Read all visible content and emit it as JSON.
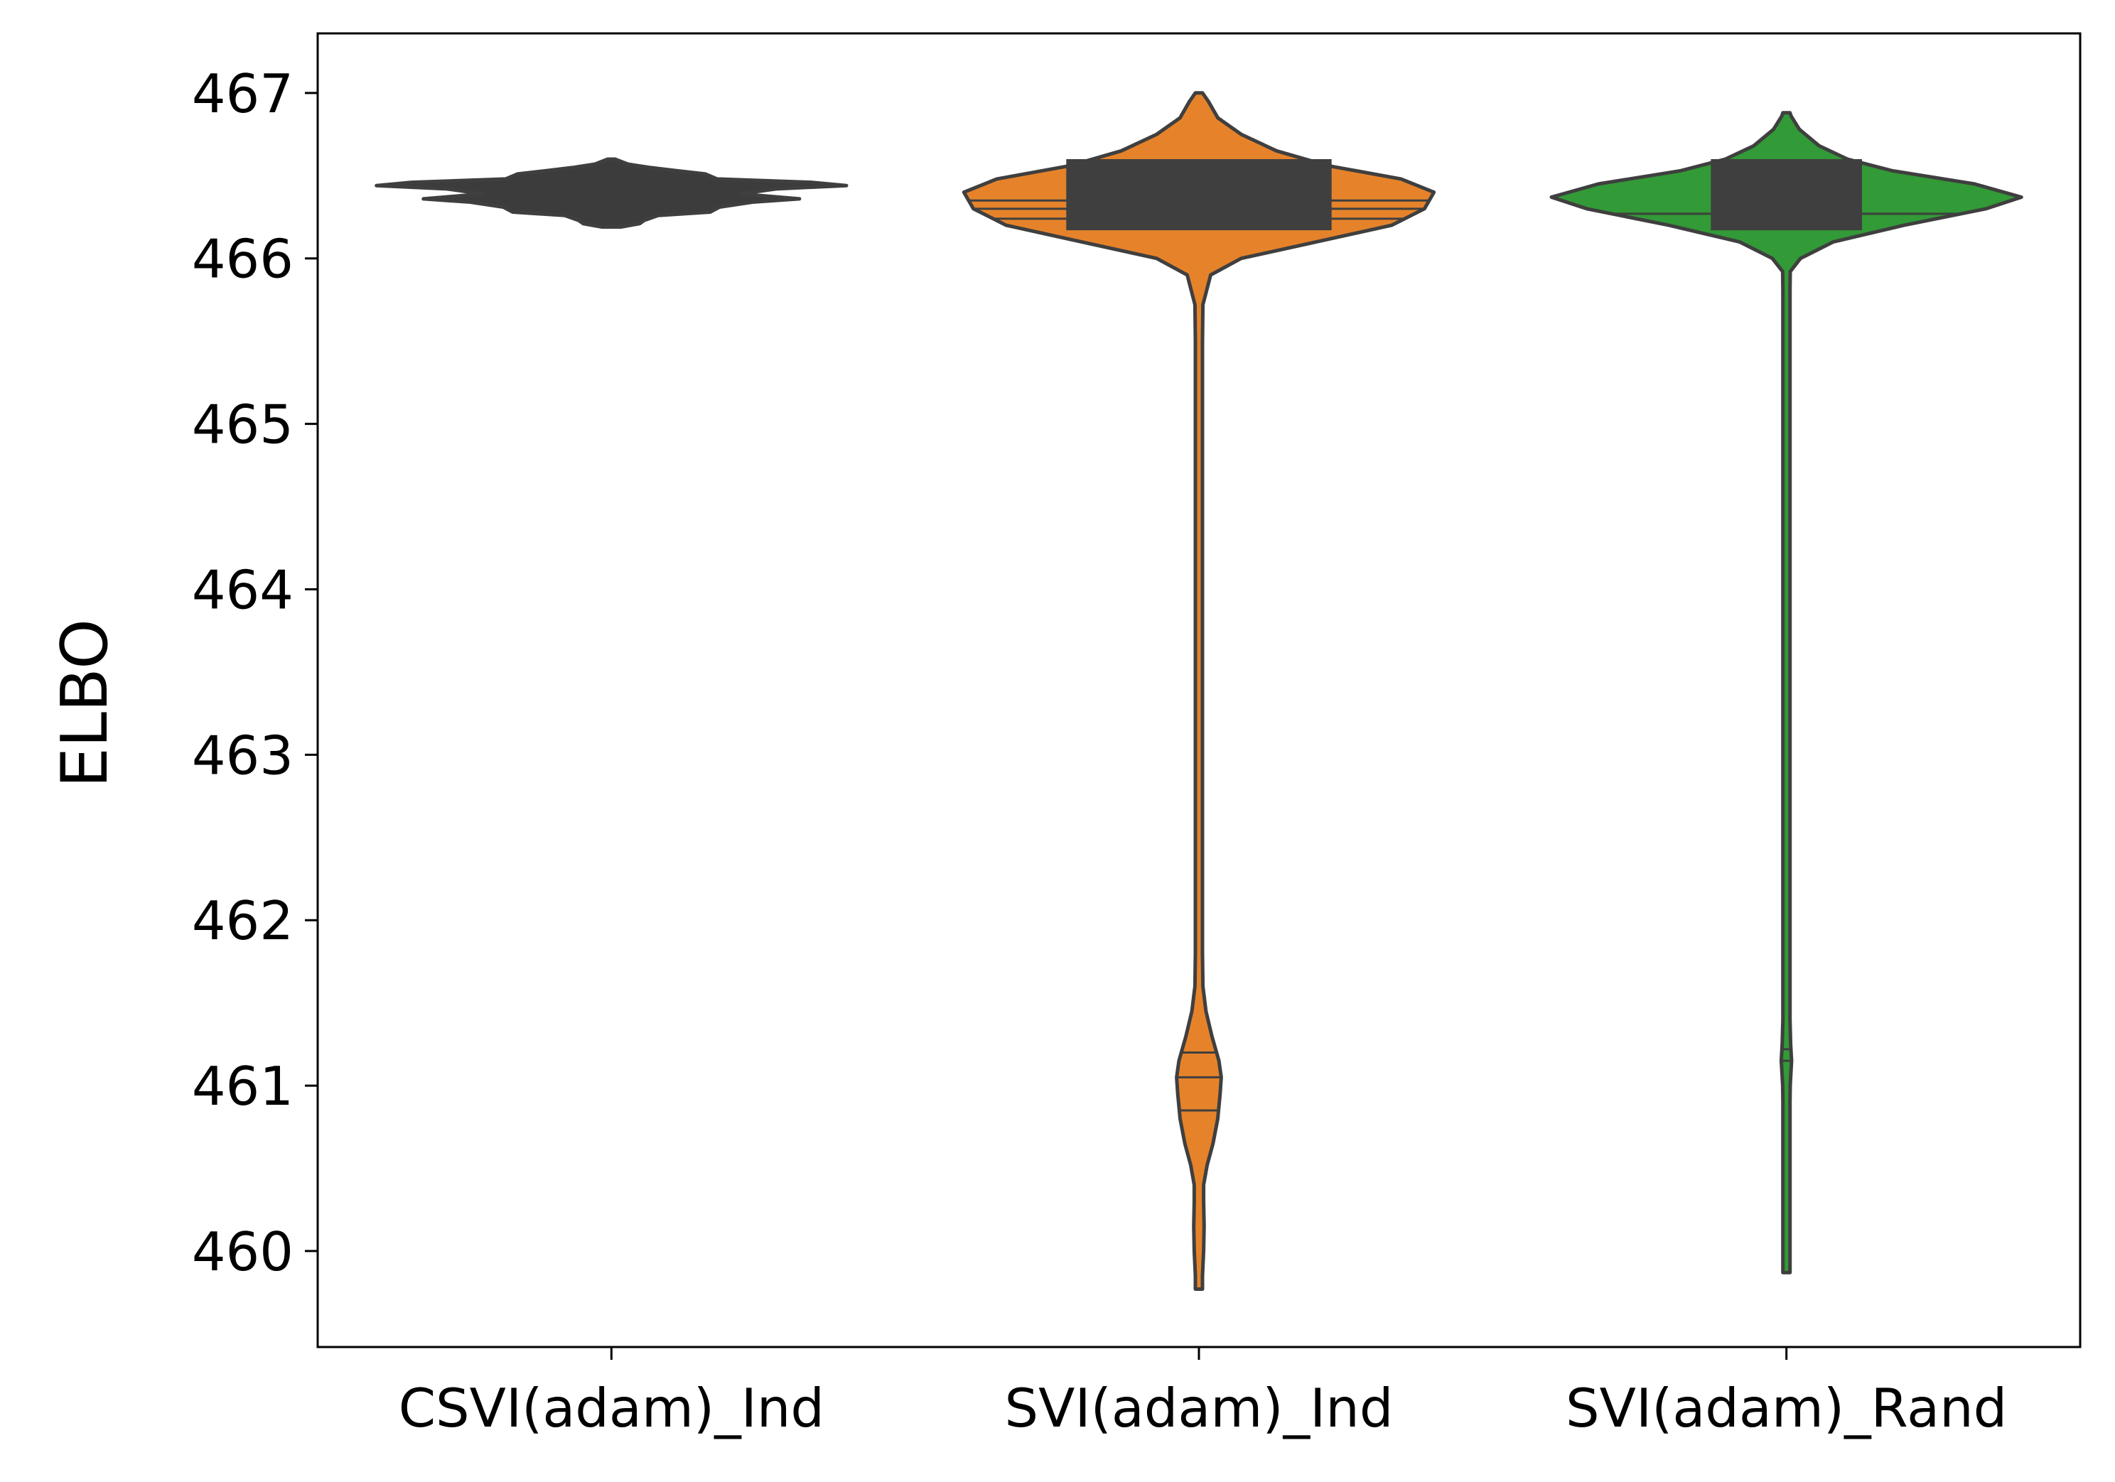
{
  "chart_data": {
    "type": "violin",
    "title": "",
    "xlabel": "",
    "ylabel": "ELBO",
    "ylim": [
      459.42,
      467.36
    ],
    "yticks": [
      460,
      461,
      462,
      463,
      464,
      465,
      466,
      467
    ],
    "ytick_labels": [
      "460",
      "461",
      "462",
      "463",
      "464",
      "465",
      "466",
      "467"
    ],
    "grid": false,
    "legend": "none",
    "categories": [
      "CSVI(adam)_Ind",
      "SVI(adam)_Ind",
      "SVI(adam)_Rand"
    ],
    "colors": {
      "CSVI(adam)_Ind": "#3c3c3c",
      "SVI(adam)_Ind": "#e6832a",
      "SVI(adam)_Rand": "#329a36",
      "outline": "#3f3f3f",
      "axis": "#000000"
    },
    "series": [
      {
        "category": "CSVI(adam)_Ind",
        "min": 466.19,
        "max": 466.6,
        "density": [
          [
            466.19,
            0.04
          ],
          [
            466.21,
            0.12
          ],
          [
            466.23,
            0.14
          ],
          [
            466.26,
            0.2
          ],
          [
            466.28,
            0.42
          ],
          [
            466.31,
            0.46
          ],
          [
            466.34,
            0.6
          ],
          [
            466.36,
            0.8
          ],
          [
            466.39,
            0.55
          ],
          [
            466.42,
            0.7
          ],
          [
            466.44,
            1.0
          ],
          [
            466.46,
            0.85
          ],
          [
            466.48,
            0.45
          ],
          [
            466.51,
            0.4
          ],
          [
            466.53,
            0.28
          ],
          [
            466.55,
            0.16
          ],
          [
            466.57,
            0.07
          ],
          [
            466.6,
            0.01
          ]
        ],
        "quartiles": []
      },
      {
        "category": "SVI(adam)_Ind",
        "min": 459.77,
        "max": 467.0,
        "density": [
          [
            459.77,
            0.0
          ],
          [
            459.85,
            0.015
          ],
          [
            460.0,
            0.02
          ],
          [
            460.15,
            0.022
          ],
          [
            460.3,
            0.02
          ],
          [
            460.4,
            0.02
          ],
          [
            460.52,
            0.035
          ],
          [
            460.65,
            0.06
          ],
          [
            460.8,
            0.08
          ],
          [
            460.95,
            0.09
          ],
          [
            461.05,
            0.095
          ],
          [
            461.15,
            0.085
          ],
          [
            461.3,
            0.055
          ],
          [
            461.45,
            0.03
          ],
          [
            461.6,
            0.017
          ],
          [
            461.8,
            0.011
          ],
          [
            462.3,
            0.01
          ],
          [
            463.5,
            0.01
          ],
          [
            464.5,
            0.01
          ],
          [
            465.5,
            0.011
          ],
          [
            465.72,
            0.017
          ],
          [
            465.9,
            0.05
          ],
          [
            466.0,
            0.18
          ],
          [
            466.1,
            0.5
          ],
          [
            466.2,
            0.82
          ],
          [
            466.3,
            0.96
          ],
          [
            466.4,
            1.0
          ],
          [
            466.48,
            0.86
          ],
          [
            466.56,
            0.55
          ],
          [
            466.65,
            0.33
          ],
          [
            466.75,
            0.18
          ],
          [
            466.85,
            0.08
          ],
          [
            466.95,
            0.04
          ],
          [
            467.0,
            0.0
          ]
        ],
        "quartiles": [
          460.85,
          461.05,
          461.2,
          466.24,
          466.3,
          466.35
        ]
      },
      {
        "category": "SVI(adam)_Rand",
        "min": 459.87,
        "max": 466.88,
        "density": [
          [
            459.87,
            0.0
          ],
          [
            459.95,
            0.008
          ],
          [
            460.05,
            0.012
          ],
          [
            460.15,
            0.01
          ],
          [
            460.3,
            0.006
          ],
          [
            460.5,
            0.005
          ],
          [
            460.75,
            0.006
          ],
          [
            460.9,
            0.01
          ],
          [
            461.0,
            0.016
          ],
          [
            461.15,
            0.022
          ],
          [
            461.25,
            0.018
          ],
          [
            461.4,
            0.012
          ],
          [
            461.6,
            0.007
          ],
          [
            462.0,
            0.006
          ],
          [
            463.0,
            0.006
          ],
          [
            464.0,
            0.006
          ],
          [
            465.0,
            0.006
          ],
          [
            465.8,
            0.007
          ],
          [
            465.92,
            0.016
          ],
          [
            466.0,
            0.06
          ],
          [
            466.1,
            0.2
          ],
          [
            466.2,
            0.5
          ],
          [
            466.3,
            0.85
          ],
          [
            466.37,
            1.0
          ],
          [
            466.45,
            0.8
          ],
          [
            466.53,
            0.45
          ],
          [
            466.6,
            0.26
          ],
          [
            466.68,
            0.14
          ],
          [
            466.78,
            0.055
          ],
          [
            466.86,
            0.02
          ],
          [
            466.88,
            0.0
          ]
        ],
        "quartiles": [
          461.15,
          461.22,
          466.27
        ]
      }
    ]
  }
}
